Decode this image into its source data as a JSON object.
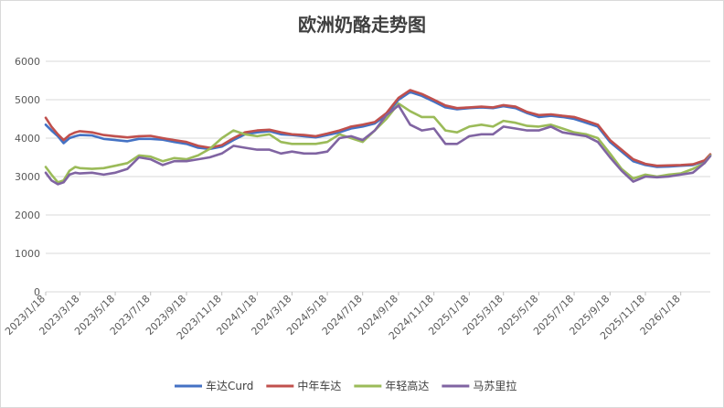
{
  "chart_data": {
    "type": "line",
    "title": "欧洲奶酪走势图",
    "xlabel": "",
    "ylabel": "",
    "ylim": [
      0,
      6000
    ],
    "yticks": [
      0,
      1000,
      2000,
      3000,
      4000,
      5000,
      6000
    ],
    "x_tick_labels": [
      "2023/1/18",
      "2023/3/18",
      "2023/5/18",
      "2023/7/18",
      "2023/9/18",
      "2023/11/18",
      "2024/1/18",
      "2024/3/18",
      "2024/5/18",
      "2024/7/18",
      "2024/9/18",
      "2024/11/18",
      "2025/1/18",
      "2025/3/18",
      "2025/5/18",
      "2025/7/18",
      "2025/9/18",
      "2025/11/18",
      "2026/1/18"
    ],
    "x_range": [
      "2023-01-18",
      "2026-03-10"
    ],
    "grid": true,
    "legend_position": "bottom",
    "series": [
      {
        "name": "车达Curd",
        "color": "#4472c4",
        "points": [
          [
            "2023-01-18",
            4350
          ],
          [
            "2023-01-28",
            4200
          ],
          [
            "2023-02-08",
            4050
          ],
          [
            "2023-02-18",
            3870
          ],
          [
            "2023-02-28",
            4000
          ],
          [
            "2023-03-10",
            4050
          ],
          [
            "2023-03-18",
            4080
          ],
          [
            "2023-04-08",
            4070
          ],
          [
            "2023-04-28",
            3980
          ],
          [
            "2023-05-18",
            3950
          ],
          [
            "2023-06-08",
            3920
          ],
          [
            "2023-06-28",
            3980
          ],
          [
            "2023-07-18",
            3980
          ],
          [
            "2023-08-08",
            3960
          ],
          [
            "2023-08-28",
            3900
          ],
          [
            "2023-09-18",
            3850
          ],
          [
            "2023-10-08",
            3750
          ],
          [
            "2023-10-28",
            3720
          ],
          [
            "2023-11-18",
            3780
          ],
          [
            "2023-12-08",
            3950
          ],
          [
            "2023-12-28",
            4100
          ],
          [
            "2024-01-18",
            4150
          ],
          [
            "2024-02-08",
            4180
          ],
          [
            "2024-02-28",
            4100
          ],
          [
            "2024-03-18",
            4080
          ],
          [
            "2024-04-08",
            4050
          ],
          [
            "2024-04-28",
            4020
          ],
          [
            "2024-05-18",
            4080
          ],
          [
            "2024-06-08",
            4150
          ],
          [
            "2024-06-28",
            4250
          ],
          [
            "2024-07-18",
            4300
          ],
          [
            "2024-08-08",
            4380
          ],
          [
            "2024-08-28",
            4600
          ],
          [
            "2024-09-18",
            5000
          ],
          [
            "2024-10-08",
            5200
          ],
          [
            "2024-10-28",
            5100
          ],
          [
            "2024-11-18",
            4950
          ],
          [
            "2024-12-08",
            4800
          ],
          [
            "2024-12-28",
            4750
          ],
          [
            "2025-01-18",
            4780
          ],
          [
            "2025-02-08",
            4800
          ],
          [
            "2025-02-28",
            4780
          ],
          [
            "2025-03-18",
            4830
          ],
          [
            "2025-04-08",
            4780
          ],
          [
            "2025-04-28",
            4650
          ],
          [
            "2025-05-18",
            4550
          ],
          [
            "2025-06-08",
            4580
          ],
          [
            "2025-06-28",
            4550
          ],
          [
            "2025-07-18",
            4500
          ],
          [
            "2025-08-08",
            4400
          ],
          [
            "2025-08-28",
            4300
          ],
          [
            "2025-09-18",
            3900
          ],
          [
            "2025-10-08",
            3650
          ],
          [
            "2025-10-28",
            3400
          ],
          [
            "2025-11-18",
            3300
          ],
          [
            "2025-12-08",
            3250
          ],
          [
            "2025-12-28",
            3260
          ],
          [
            "2026-01-18",
            3280
          ],
          [
            "2026-02-08",
            3300
          ],
          [
            "2026-02-28",
            3400
          ],
          [
            "2026-03-10",
            3560
          ]
        ]
      },
      {
        "name": "中年车达",
        "color": "#c0504d",
        "points": [
          [
            "2023-01-18",
            4530
          ],
          [
            "2023-01-28",
            4300
          ],
          [
            "2023-02-08",
            4100
          ],
          [
            "2023-02-18",
            3950
          ],
          [
            "2023-02-28",
            4080
          ],
          [
            "2023-03-10",
            4150
          ],
          [
            "2023-03-18",
            4180
          ],
          [
            "2023-04-08",
            4150
          ],
          [
            "2023-04-28",
            4080
          ],
          [
            "2023-05-18",
            4050
          ],
          [
            "2023-06-08",
            4020
          ],
          [
            "2023-06-28",
            4050
          ],
          [
            "2023-07-18",
            4060
          ],
          [
            "2023-08-08",
            4000
          ],
          [
            "2023-08-28",
            3950
          ],
          [
            "2023-09-18",
            3900
          ],
          [
            "2023-10-08",
            3800
          ],
          [
            "2023-10-28",
            3750
          ],
          [
            "2023-11-18",
            3820
          ],
          [
            "2023-12-08",
            4000
          ],
          [
            "2023-12-28",
            4150
          ],
          [
            "2024-01-18",
            4200
          ],
          [
            "2024-02-08",
            4220
          ],
          [
            "2024-02-28",
            4150
          ],
          [
            "2024-03-18",
            4100
          ],
          [
            "2024-04-08",
            4080
          ],
          [
            "2024-04-28",
            4050
          ],
          [
            "2024-05-18",
            4120
          ],
          [
            "2024-06-08",
            4200
          ],
          [
            "2024-06-28",
            4300
          ],
          [
            "2024-07-18",
            4350
          ],
          [
            "2024-08-08",
            4420
          ],
          [
            "2024-08-28",
            4650
          ],
          [
            "2024-09-18",
            5050
          ],
          [
            "2024-10-08",
            5250
          ],
          [
            "2024-10-28",
            5150
          ],
          [
            "2024-11-18",
            5000
          ],
          [
            "2024-12-08",
            4850
          ],
          [
            "2024-12-28",
            4780
          ],
          [
            "2025-01-18",
            4800
          ],
          [
            "2025-02-08",
            4820
          ],
          [
            "2025-02-28",
            4800
          ],
          [
            "2025-03-18",
            4860
          ],
          [
            "2025-04-08",
            4820
          ],
          [
            "2025-04-28",
            4680
          ],
          [
            "2025-05-18",
            4600
          ],
          [
            "2025-06-08",
            4620
          ],
          [
            "2025-06-28",
            4580
          ],
          [
            "2025-07-18",
            4550
          ],
          [
            "2025-08-08",
            4450
          ],
          [
            "2025-08-28",
            4350
          ],
          [
            "2025-09-18",
            3950
          ],
          [
            "2025-10-08",
            3700
          ],
          [
            "2025-10-28",
            3450
          ],
          [
            "2025-11-18",
            3330
          ],
          [
            "2025-12-08",
            3280
          ],
          [
            "2025-12-28",
            3290
          ],
          [
            "2026-01-18",
            3300
          ],
          [
            "2026-02-08",
            3320
          ],
          [
            "2026-02-28",
            3420
          ],
          [
            "2026-03-10",
            3580
          ]
        ]
      },
      {
        "name": "年轻高达",
        "color": "#9bbb59",
        "points": [
          [
            "2023-01-18",
            3250
          ],
          [
            "2023-01-28",
            3050
          ],
          [
            "2023-02-08",
            2850
          ],
          [
            "2023-02-18",
            2900
          ],
          [
            "2023-02-28",
            3150
          ],
          [
            "2023-03-10",
            3250
          ],
          [
            "2023-03-18",
            3220
          ],
          [
            "2023-04-08",
            3200
          ],
          [
            "2023-04-28",
            3220
          ],
          [
            "2023-05-18",
            3280
          ],
          [
            "2023-06-08",
            3350
          ],
          [
            "2023-06-28",
            3550
          ],
          [
            "2023-07-18",
            3520
          ],
          [
            "2023-08-08",
            3400
          ],
          [
            "2023-08-28",
            3480
          ],
          [
            "2023-09-18",
            3450
          ],
          [
            "2023-10-08",
            3550
          ],
          [
            "2023-10-28",
            3720
          ],
          [
            "2023-11-18",
            4000
          ],
          [
            "2023-12-08",
            4200
          ],
          [
            "2023-12-28",
            4100
          ],
          [
            "2024-01-18",
            4050
          ],
          [
            "2024-02-08",
            4100
          ],
          [
            "2024-02-28",
            3900
          ],
          [
            "2024-03-18",
            3850
          ],
          [
            "2024-04-08",
            3850
          ],
          [
            "2024-04-28",
            3850
          ],
          [
            "2024-05-18",
            3900
          ],
          [
            "2024-06-08",
            4100
          ],
          [
            "2024-06-28",
            4000
          ],
          [
            "2024-07-18",
            3900
          ],
          [
            "2024-08-08",
            4200
          ],
          [
            "2024-08-28",
            4500
          ],
          [
            "2024-09-18",
            4900
          ],
          [
            "2024-10-08",
            4700
          ],
          [
            "2024-10-28",
            4550
          ],
          [
            "2024-11-18",
            4550
          ],
          [
            "2024-12-08",
            4200
          ],
          [
            "2024-12-28",
            4150
          ],
          [
            "2025-01-18",
            4300
          ],
          [
            "2025-02-08",
            4350
          ],
          [
            "2025-02-28",
            4300
          ],
          [
            "2025-03-18",
            4450
          ],
          [
            "2025-04-08",
            4400
          ],
          [
            "2025-04-28",
            4320
          ],
          [
            "2025-05-18",
            4300
          ],
          [
            "2025-06-08",
            4350
          ],
          [
            "2025-06-28",
            4250
          ],
          [
            "2025-07-18",
            4150
          ],
          [
            "2025-08-08",
            4100
          ],
          [
            "2025-08-28",
            4000
          ],
          [
            "2025-09-18",
            3600
          ],
          [
            "2025-10-08",
            3200
          ],
          [
            "2025-10-28",
            2950
          ],
          [
            "2025-11-18",
            3050
          ],
          [
            "2025-12-08",
            3000
          ],
          [
            "2025-12-28",
            3050
          ],
          [
            "2026-01-18",
            3080
          ],
          [
            "2026-02-08",
            3200
          ],
          [
            "2026-02-28",
            3350
          ],
          [
            "2026-03-10",
            3550
          ]
        ]
      },
      {
        "name": "马苏里拉",
        "color": "#8064a2",
        "points": [
          [
            "2023-01-18",
            3100
          ],
          [
            "2023-01-28",
            2900
          ],
          [
            "2023-02-08",
            2800
          ],
          [
            "2023-02-18",
            2850
          ],
          [
            "2023-02-28",
            3050
          ],
          [
            "2023-03-10",
            3100
          ],
          [
            "2023-03-18",
            3080
          ],
          [
            "2023-04-08",
            3100
          ],
          [
            "2023-04-28",
            3050
          ],
          [
            "2023-05-18",
            3100
          ],
          [
            "2023-06-08",
            3200
          ],
          [
            "2023-06-28",
            3500
          ],
          [
            "2023-07-18",
            3450
          ],
          [
            "2023-08-08",
            3300
          ],
          [
            "2023-08-28",
            3400
          ],
          [
            "2023-09-18",
            3400
          ],
          [
            "2023-10-08",
            3450
          ],
          [
            "2023-10-28",
            3500
          ],
          [
            "2023-11-18",
            3600
          ],
          [
            "2023-12-08",
            3800
          ],
          [
            "2023-12-28",
            3750
          ],
          [
            "2024-01-18",
            3700
          ],
          [
            "2024-02-08",
            3700
          ],
          [
            "2024-02-28",
            3600
          ],
          [
            "2024-03-18",
            3650
          ],
          [
            "2024-04-08",
            3600
          ],
          [
            "2024-04-28",
            3600
          ],
          [
            "2024-05-18",
            3650
          ],
          [
            "2024-06-08",
            4000
          ],
          [
            "2024-06-28",
            4050
          ],
          [
            "2024-07-18",
            3950
          ],
          [
            "2024-08-08",
            4200
          ],
          [
            "2024-08-28",
            4600
          ],
          [
            "2024-09-18",
            4850
          ],
          [
            "2024-10-08",
            4350
          ],
          [
            "2024-10-28",
            4200
          ],
          [
            "2024-11-18",
            4250
          ],
          [
            "2024-12-08",
            3850
          ],
          [
            "2024-12-28",
            3850
          ],
          [
            "2025-01-18",
            4050
          ],
          [
            "2025-02-08",
            4100
          ],
          [
            "2025-02-28",
            4100
          ],
          [
            "2025-03-18",
            4300
          ],
          [
            "2025-04-08",
            4250
          ],
          [
            "2025-04-28",
            4200
          ],
          [
            "2025-05-18",
            4200
          ],
          [
            "2025-06-08",
            4300
          ],
          [
            "2025-06-28",
            4150
          ],
          [
            "2025-07-18",
            4100
          ],
          [
            "2025-08-08",
            4050
          ],
          [
            "2025-08-28",
            3900
          ],
          [
            "2025-09-18",
            3500
          ],
          [
            "2025-10-08",
            3150
          ],
          [
            "2025-10-28",
            2870
          ],
          [
            "2025-11-18",
            3000
          ],
          [
            "2025-12-08",
            2980
          ],
          [
            "2025-12-28",
            3000
          ],
          [
            "2026-01-18",
            3050
          ],
          [
            "2026-02-08",
            3100
          ],
          [
            "2026-02-28",
            3350
          ],
          [
            "2026-03-10",
            3530
          ]
        ]
      }
    ]
  }
}
